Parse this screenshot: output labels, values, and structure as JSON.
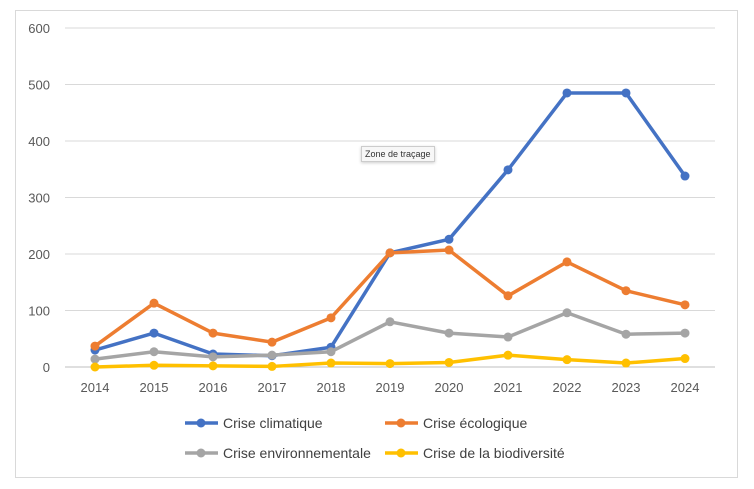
{
  "chart_data": {
    "type": "line",
    "x": [
      2014,
      2015,
      2016,
      2017,
      2018,
      2019,
      2020,
      2021,
      2022,
      2023,
      2024
    ],
    "ylim": [
      0,
      600
    ],
    "yticks": [
      0,
      100,
      200,
      300,
      400,
      500,
      600
    ],
    "grid": true,
    "legend_placement": "bottom",
    "series": [
      {
        "name": "Crise climatique",
        "color": "#4472c4",
        "values": [
          30,
          60,
          23,
          20,
          35,
          202,
          226,
          349,
          485,
          485,
          338
        ]
      },
      {
        "name": "Crise écologique",
        "color": "#ed7d31",
        "values": [
          37,
          113,
          60,
          44,
          87,
          202,
          207,
          126,
          186,
          135,
          110
        ]
      },
      {
        "name": "Crise environnementale",
        "color": "#a5a5a5",
        "values": [
          14,
          27,
          18,
          21,
          27,
          80,
          60,
          53,
          96,
          58,
          60
        ]
      },
      {
        "name": "Crise de la biodiversité",
        "color": "#ffc000",
        "values": [
          0,
          3,
          2,
          1,
          7,
          6,
          8,
          21,
          13,
          7,
          15
        ]
      }
    ]
  },
  "tooltip": "Zone de traçage"
}
